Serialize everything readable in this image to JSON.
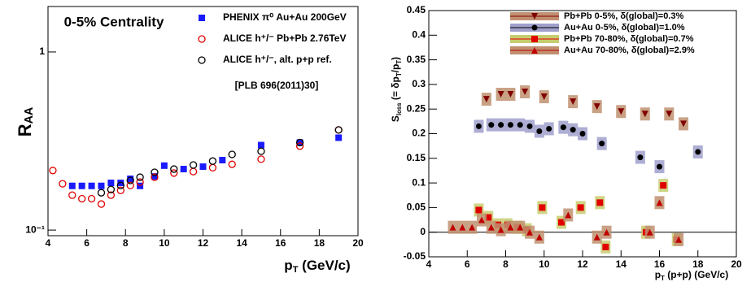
{
  "chart_data": [
    {
      "type": "scatter",
      "log_y": true,
      "annotation": "0-5% Centrality",
      "reference": "[PLB 696(2011)30]",
      "x_label": [
        "p",
        "T",
        " (GeV/c)"
      ],
      "y_label": [
        "R",
        "AA"
      ],
      "xlim": [
        4,
        20
      ],
      "xticks": [
        4,
        6,
        8,
        10,
        12,
        14,
        16,
        18,
        20
      ],
      "ylim": [
        0.093,
        1.8
      ],
      "yticks": [
        {
          "value": 0.1,
          "label": "10⁻¹"
        },
        1
      ],
      "series": [
        {
          "name": "PHENIX π⁰ Au+Au 200GeV",
          "color": "#1a1aff",
          "marker": "square",
          "x": [
            5.25,
            5.75,
            6.25,
            6.75,
            7.25,
            7.75,
            8.25,
            8.75,
            9.5,
            10,
            11,
            12,
            13,
            15,
            17,
            19
          ],
          "values": [
            0.177,
            0.177,
            0.177,
            0.177,
            0.184,
            0.184,
            0.194,
            0.177,
            0.2,
            0.23,
            0.22,
            0.227,
            0.247,
            0.3,
            0.31,
            0.33
          ]
        },
        {
          "name": "ALICE h⁺/⁻ Pb+Pb 2.76TeV",
          "color": "#e00000",
          "marker": "circle-open",
          "x": [
            4.25,
            4.75,
            5.25,
            5.75,
            6.25,
            6.75,
            7.25,
            7.75,
            8.25,
            8.75,
            9.5,
            10.5,
            11.5,
            12.5,
            13.5,
            15,
            17,
            19
          ],
          "values": [
            0.216,
            0.182,
            0.157,
            0.15,
            0.15,
            0.14,
            0.157,
            0.167,
            0.178,
            0.186,
            0.198,
            0.209,
            0.213,
            0.224,
            0.234,
            0.25,
            0.296,
            0.365
          ]
        },
        {
          "name": "ALICE h⁺/⁻, alt. p+p ref.",
          "color": "#000000",
          "marker": "circle-open",
          "x": [
            6.75,
            7.25,
            7.75,
            8.25,
            8.75,
            9.5,
            10.5,
            11.5,
            12.5,
            13.5,
            15,
            17,
            19
          ],
          "values": [
            0.162,
            0.169,
            0.178,
            0.19,
            0.198,
            0.211,
            0.22,
            0.232,
            0.244,
            0.266,
            0.277,
            0.31,
            0.365
          ]
        }
      ]
    },
    {
      "type": "scatter",
      "zero_line": true,
      "x_label": [
        "p",
        "T",
        " (p+p) (GeV/c)"
      ],
      "y_label": [
        "S",
        "loss",
        " (= δp",
        "T",
        "/p",
        "T",
        ")"
      ],
      "xlim": [
        4,
        20
      ],
      "xticks": [
        4,
        6,
        8,
        10,
        12,
        14,
        16,
        18,
        20
      ],
      "ylim": [
        -0.05,
        0.45
      ],
      "yticks": [
        -0.05,
        0,
        0.05,
        0.1,
        0.15,
        0.2,
        0.25,
        0.3,
        0.35,
        0.4,
        0.45
      ],
      "series": [
        {
          "name": "Pb+Pb 0-5%, δ(global)=0.3%",
          "color": "#800000",
          "box_color": "#c09070",
          "marker": "triangle-down",
          "x": [
            7.0,
            7.75,
            8.25,
            9.0,
            10.0,
            11.5,
            12.75,
            14.0,
            15.25,
            16.5,
            17.25
          ],
          "values": [
            0.27,
            0.28,
            0.28,
            0.285,
            0.275,
            0.265,
            0.255,
            0.245,
            0.24,
            0.24,
            0.22
          ]
        },
        {
          "name": "Au+Au 0-5%, δ(global)=1.0%",
          "color": "#000000",
          "box_color": "#a0a0cc",
          "marker": "circle",
          "x": [
            6.6,
            7.25,
            7.75,
            8.25,
            8.75,
            9.25,
            9.75,
            10.25,
            11,
            11.5,
            12,
            13,
            15,
            16,
            18
          ],
          "values": [
            0.215,
            0.218,
            0.218,
            0.218,
            0.218,
            0.215,
            0.205,
            0.21,
            0.213,
            0.208,
            0.2,
            0.18,
            0.152,
            0.133,
            0.163
          ]
        },
        {
          "name": "Pb+Pb 70-80%, δ(global)=0.7%",
          "color": "#e00000",
          "box_color": "#c8cc70",
          "marker": "square",
          "x": [
            6.6,
            7.1,
            7.6,
            8.1,
            8.6,
            9.1,
            9.9,
            10.9,
            11.9,
            12.9,
            13.2,
            15.3,
            16.2,
            16.9
          ],
          "values": [
            0.045,
            0.03,
            0.015,
            0.015,
            0.01,
            0.005,
            0.05,
            0.02,
            0.05,
            0.06,
            -0.03,
            0.0,
            0.095,
            -0.015
          ]
        },
        {
          "name": "Au+Au 70-80%, δ(global)=2.9%",
          "color": "#c00000",
          "box_color": "#c09070",
          "marker": "triangle-up",
          "x": [
            5.25,
            5.75,
            6.25,
            6.75,
            7.25,
            7.75,
            8.25,
            8.75,
            9.25,
            9.75,
            11.25,
            12.75,
            13.25,
            15.5,
            16.0,
            17.0
          ],
          "values": [
            0.01,
            0.01,
            0.01,
            0.025,
            0.01,
            0.005,
            0.01,
            0.01,
            0.0,
            -0.01,
            0.035,
            -0.01,
            0.0,
            0.0,
            0.06,
            -0.015
          ]
        }
      ]
    }
  ]
}
